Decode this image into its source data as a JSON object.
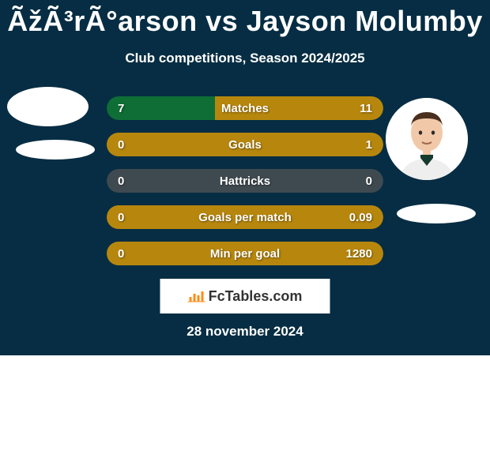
{
  "title": "ÃžÃ³rÃ°arson vs Jayson Molumby",
  "subtitle": "Club competitions, Season 2024/2025",
  "date": "28 november 2024",
  "logo_text": "FcTables.com",
  "colors": {
    "card_bg": "#062d43",
    "left_bar": "#0e6e35",
    "right_bar": "#b7870d",
    "neutral_bar": "#3f4a50",
    "text": "#ffffff",
    "logo_bg": "#ffffff",
    "logo_icon": "#ff8c1a"
  },
  "avatar_colors": {
    "skin": "#f2c9a8",
    "hair": "#4a2f1e",
    "shirt": "#eeeeee",
    "collar": "#153a2e"
  },
  "stats": [
    {
      "label": "Matches",
      "left_val": "7",
      "right_val": "11",
      "left_pct": 39,
      "right_pct": 61,
      "neutral": false
    },
    {
      "label": "Goals",
      "left_val": "0",
      "right_val": "1",
      "left_pct": 0,
      "right_pct": 100,
      "neutral": false
    },
    {
      "label": "Hattricks",
      "left_val": "0",
      "right_val": "0",
      "left_pct": 50,
      "right_pct": 50,
      "neutral": true
    },
    {
      "label": "Goals per match",
      "left_val": "0",
      "right_val": "0.09",
      "left_pct": 0,
      "right_pct": 100,
      "neutral": false
    },
    {
      "label": "Min per goal",
      "left_val": "0",
      "right_val": "1280",
      "left_pct": 0,
      "right_pct": 100,
      "neutral": false
    }
  ]
}
